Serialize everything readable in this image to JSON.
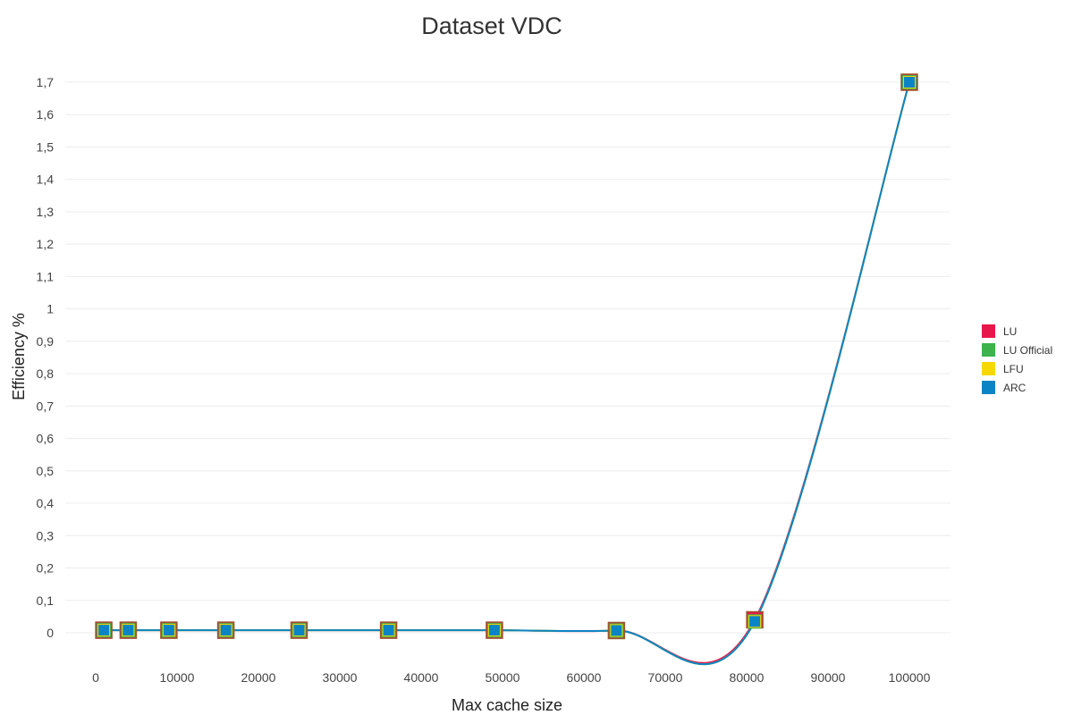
{
  "chart_data": {
    "type": "line",
    "title": "Dataset VDC",
    "xlabel": "Max cache size",
    "ylabel": "Efficiency %",
    "xlim": [
      0,
      100000
    ],
    "ylim": [
      0,
      1.7
    ],
    "x_ticks": [
      "0",
      "10000",
      "20000",
      "30000",
      "40000",
      "50000",
      "60000",
      "70000",
      "80000",
      "90000",
      "100000"
    ],
    "y_ticks": [
      "0",
      "0,1",
      "0,2",
      "0,3",
      "0,4",
      "0,5",
      "0,6",
      "0,7",
      "0,8",
      "0,9",
      "1",
      "1,1",
      "1,2",
      "1,3",
      "1,4",
      "1,5",
      "1,6",
      "1,7"
    ],
    "x": [
      1000,
      4000,
      9000,
      16000,
      25000,
      36000,
      49000,
      64000,
      81000,
      100000
    ],
    "series": [
      {
        "name": "LU",
        "color": "#e8174b",
        "values": [
          0.008,
          0.008,
          0.008,
          0.008,
          0.008,
          0.008,
          0.008,
          0.007,
          0.04,
          1.7
        ]
      },
      {
        "name": "LU Official",
        "color": "#3cb44b",
        "values": [
          0.008,
          0.008,
          0.008,
          0.008,
          0.008,
          0.008,
          0.008,
          0.007,
          0.035,
          1.7
        ]
      },
      {
        "name": "LFU",
        "color": "#f5d800",
        "values": [
          0.008,
          0.008,
          0.008,
          0.008,
          0.008,
          0.008,
          0.008,
          0.007,
          0.035,
          1.7
        ]
      },
      {
        "name": "ARC",
        "color": "#0b84c6",
        "values": [
          0.008,
          0.008,
          0.008,
          0.008,
          0.008,
          0.008,
          0.008,
          0.007,
          0.035,
          1.7
        ]
      }
    ],
    "grid": true,
    "legend_position": "right",
    "marker": "square",
    "marker_outline_color": "#a0522d"
  }
}
